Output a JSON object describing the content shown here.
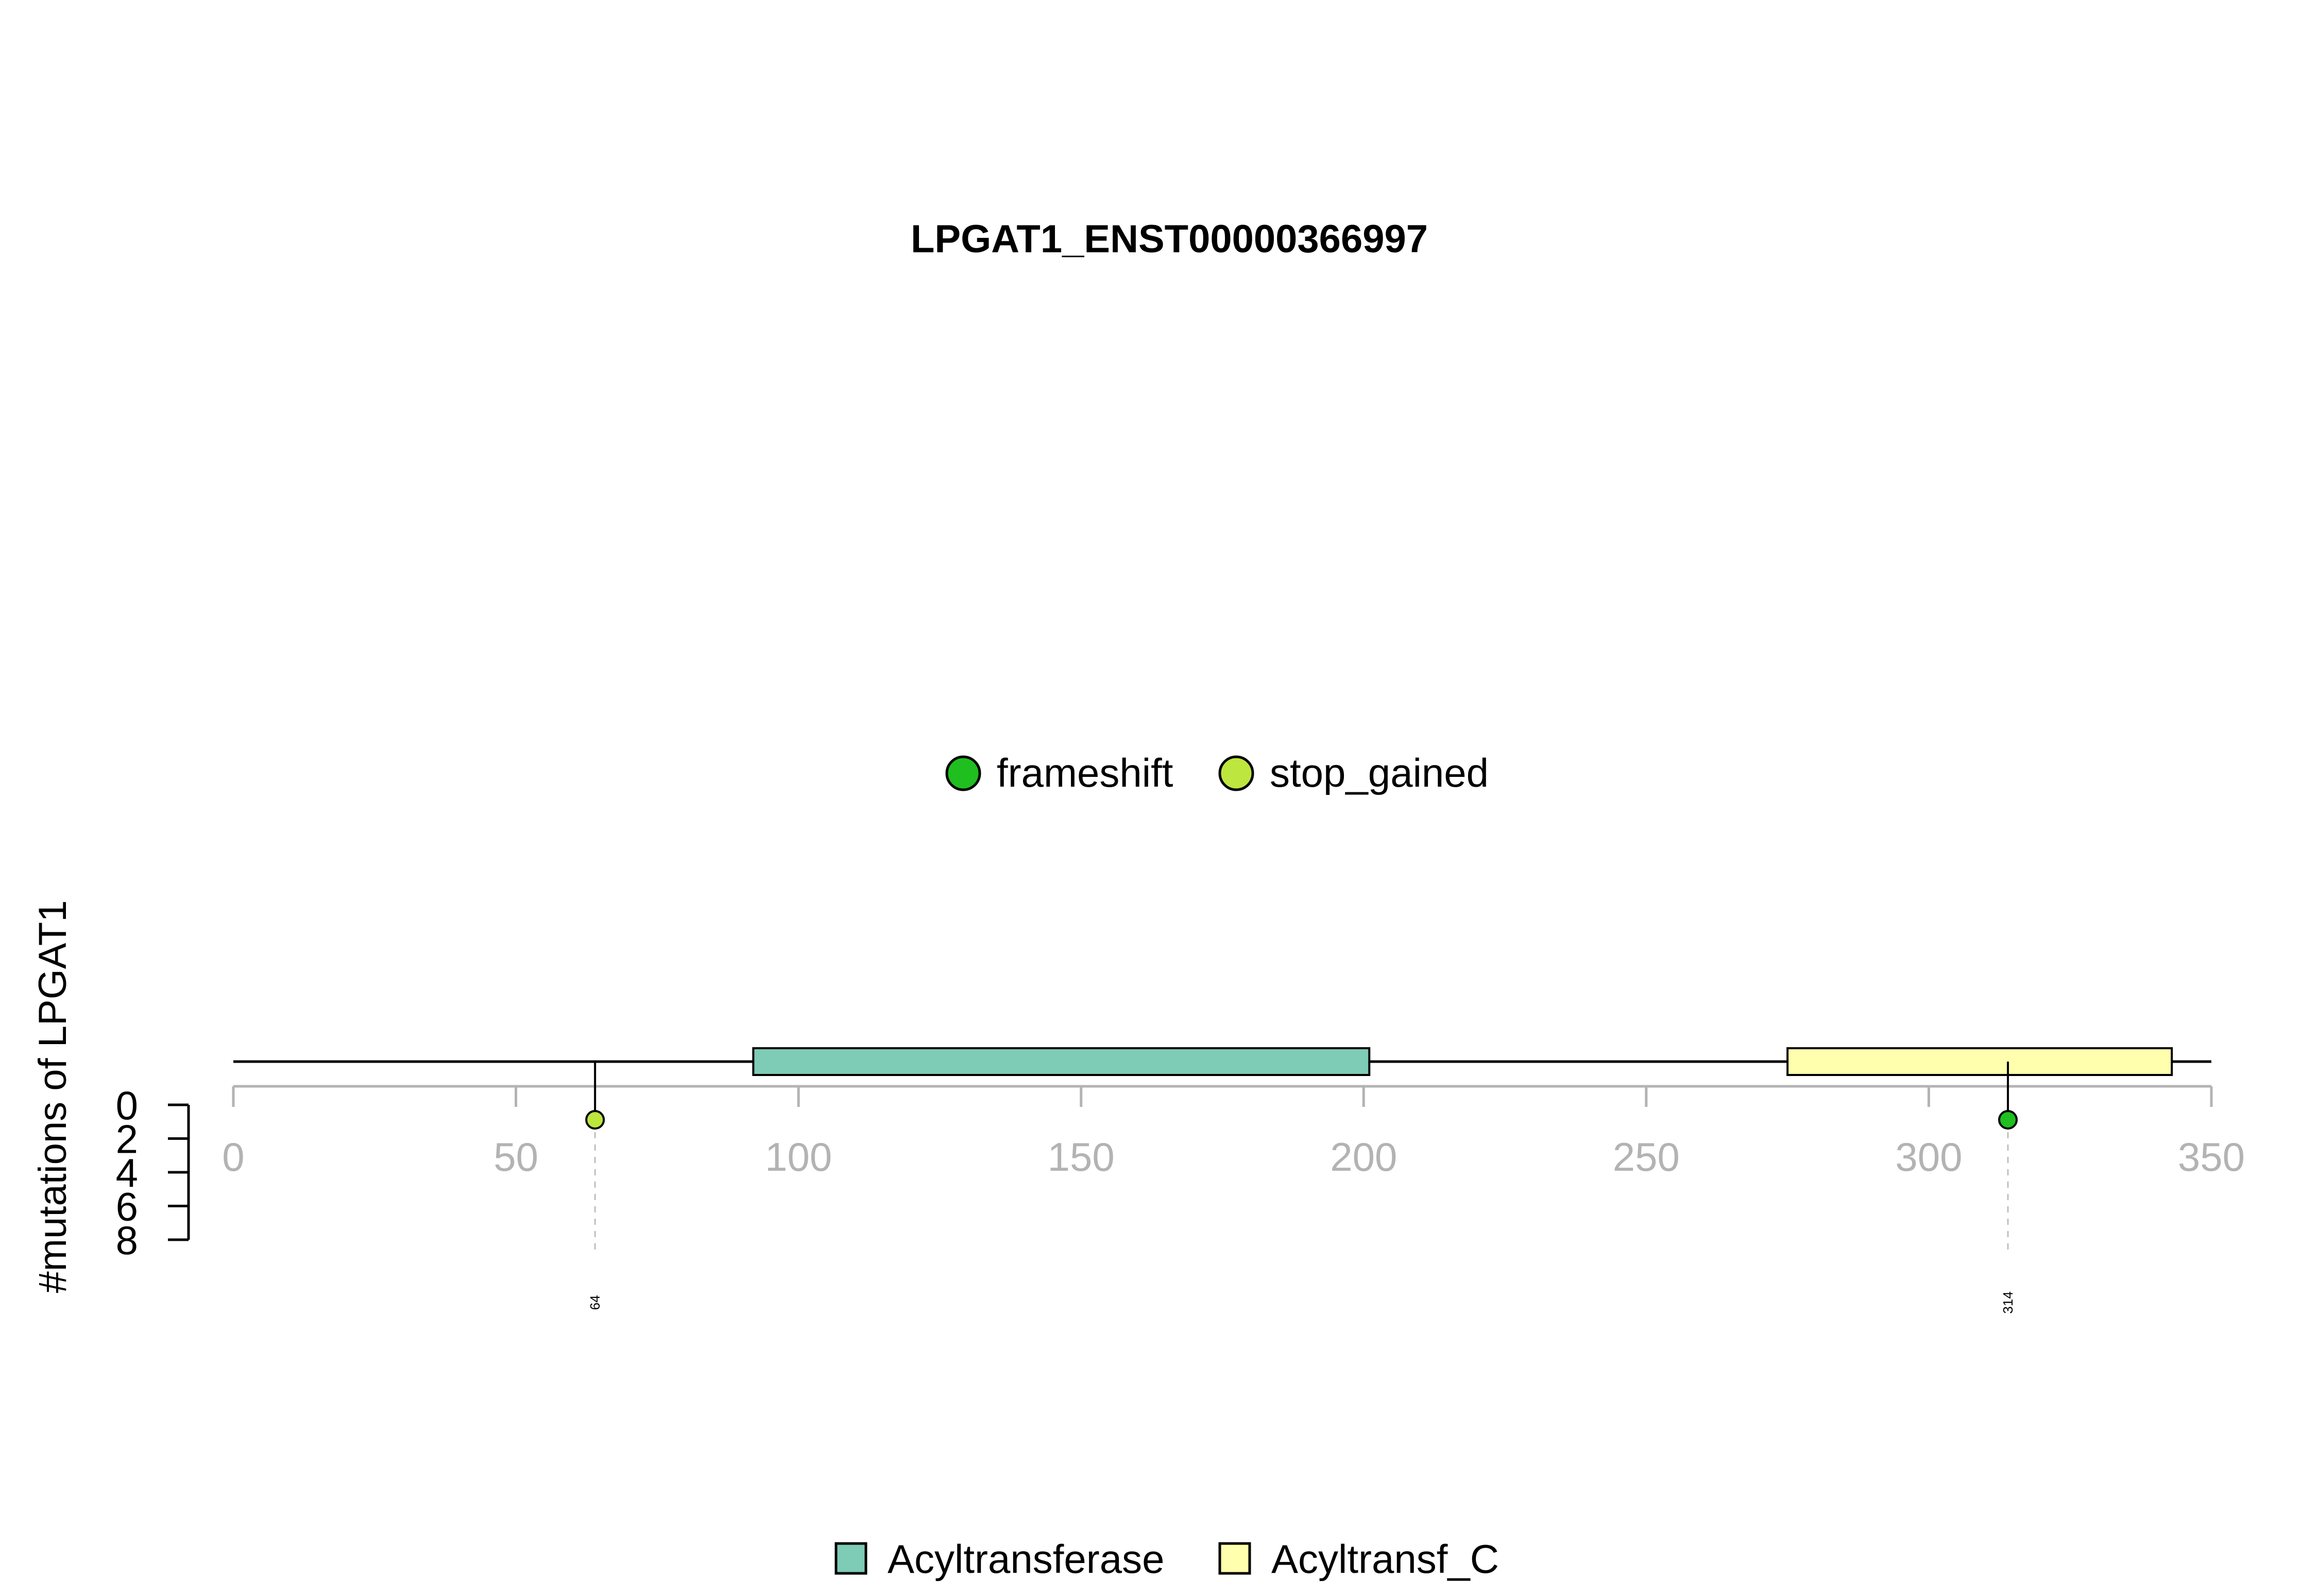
{
  "chart_data": {
    "type": "lollipop",
    "title": "LPGAT1_ENST00000366997",
    "ylabel": "#mutations of LPGAT1",
    "protein_length": 350,
    "x_ticks": [
      0,
      50,
      100,
      150,
      200,
      250,
      300,
      350
    ],
    "xlim": [
      0,
      350
    ],
    "y_ticks": [
      0,
      2,
      4,
      6,
      8
    ],
    "ylim": [
      0,
      8
    ],
    "mutation_legend": [
      {
        "name": "frameshift",
        "color": "#1fbf1f"
      },
      {
        "name": "stop_gained",
        "color": "#bde63f"
      }
    ],
    "mutations": [
      {
        "position": 64,
        "label": "64",
        "count": 0,
        "type": "stop_gained",
        "color": "#bde63f"
      },
      {
        "position": 314,
        "label": "314",
        "count": 0,
        "type": "frameshift",
        "color": "#1fbf1f"
      }
    ],
    "domains": [
      {
        "name": "Acyltransferase",
        "start": 92,
        "end": 201,
        "color": "#7ecbb6"
      },
      {
        "name": "Acyltransf_C",
        "start": 275,
        "end": 343,
        "color": "#ffffad"
      }
    ],
    "axis_color": "#b3b3b3"
  }
}
